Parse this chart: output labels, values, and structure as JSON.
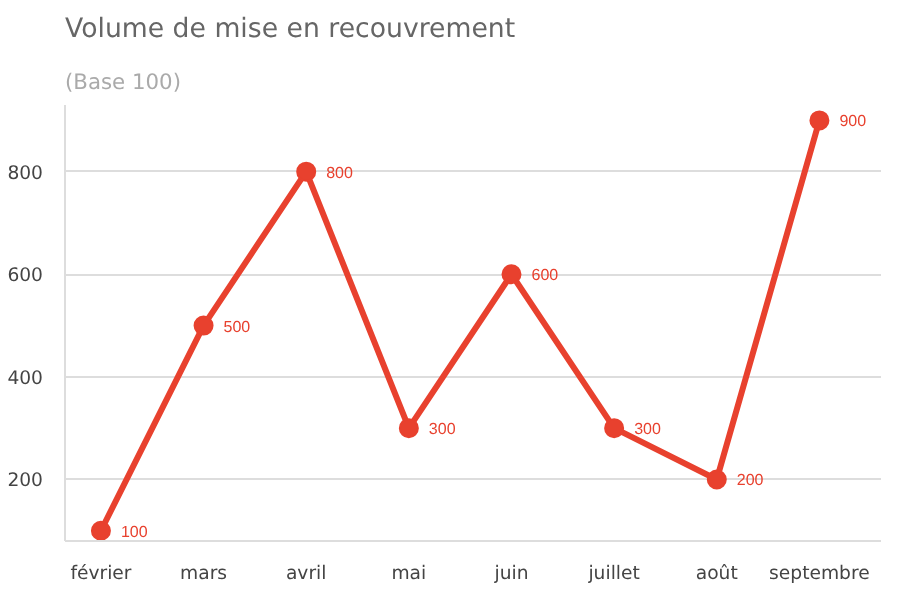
{
  "chart_data": {
    "type": "line",
    "title": "Volume de mise en recouvrement",
    "subtitle": "(Base 100)",
    "categories": [
      "février",
      "mars",
      "avril",
      "mai",
      "juin",
      "juillet",
      "août",
      "septembre"
    ],
    "series": [
      {
        "color": "#e8412e",
        "values": [
          100,
          500,
          800,
          300,
          600,
          300,
          200,
          900
        ]
      }
    ],
    "ylim": [
      80,
      930
    ],
    "yticks": [
      200,
      400,
      600,
      800
    ],
    "grid": "y",
    "marker": "circle",
    "line_style": "solid",
    "data_labels": true
  }
}
